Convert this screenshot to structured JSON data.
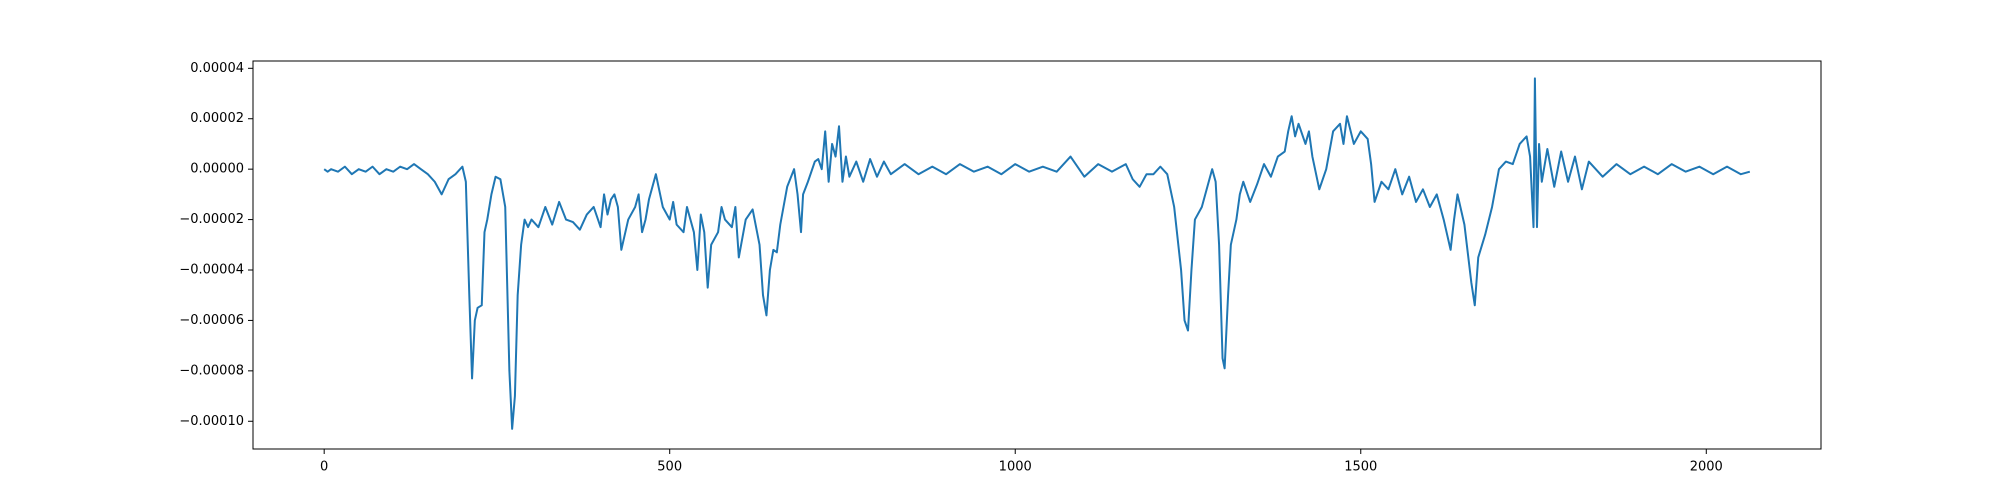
{
  "chart_data": {
    "type": "line",
    "x": [
      0,
      5,
      10,
      20,
      30,
      40,
      50,
      60,
      70,
      80,
      90,
      100,
      110,
      120,
      130,
      140,
      150,
      160,
      170,
      180,
      190,
      200,
      205,
      210,
      214,
      218,
      222,
      228,
      232,
      236,
      242,
      248,
      255,
      262,
      268,
      272,
      276,
      280,
      285,
      290,
      295,
      300,
      310,
      320,
      330,
      340,
      350,
      360,
      370,
      380,
      390,
      400,
      405,
      410,
      415,
      420,
      425,
      430,
      440,
      450,
      455,
      460,
      465,
      470,
      480,
      490,
      500,
      505,
      510,
      520,
      525,
      530,
      535,
      540,
      545,
      550,
      555,
      560,
      570,
      575,
      580,
      590,
      595,
      600,
      610,
      620,
      630,
      635,
      640,
      645,
      650,
      655,
      660,
      670,
      680,
      685,
      690,
      693,
      700,
      710,
      715,
      720,
      725,
      730,
      735,
      740,
      745,
      750,
      755,
      760,
      770,
      780,
      790,
      800,
      810,
      820,
      840,
      860,
      880,
      900,
      920,
      940,
      960,
      980,
      1000,
      1020,
      1040,
      1060,
      1080,
      1100,
      1120,
      1140,
      1160,
      1170,
      1180,
      1190,
      1200,
      1210,
      1220,
      1230,
      1240,
      1245,
      1250,
      1255,
      1260,
      1270,
      1280,
      1285,
      1290,
      1295,
      1300,
      1303,
      1308,
      1312,
      1320,
      1325,
      1330,
      1340,
      1350,
      1360,
      1370,
      1380,
      1390,
      1395,
      1400,
      1405,
      1410,
      1420,
      1425,
      1430,
      1440,
      1450,
      1460,
      1470,
      1475,
      1480,
      1490,
      1500,
      1510,
      1515,
      1520,
      1530,
      1540,
      1550,
      1560,
      1570,
      1580,
      1590,
      1600,
      1610,
      1620,
      1630,
      1635,
      1640,
      1650,
      1660,
      1665,
      1670,
      1680,
      1690,
      1700,
      1710,
      1720,
      1730,
      1740,
      1745,
      1750,
      1752,
      1755,
      1758,
      1762,
      1770,
      1780,
      1790,
      1800,
      1810,
      1820,
      1830,
      1850,
      1870,
      1890,
      1910,
      1930,
      1950,
      1970,
      1990,
      2010,
      2030,
      2050,
      2063
    ],
    "series": [
      {
        "color": "#1f77b4",
        "values": [
          0,
          -1e-06,
          0,
          -1e-06,
          1e-06,
          -2e-06,
          0,
          -1e-06,
          1e-06,
          -2e-06,
          0,
          -1e-06,
          1e-06,
          0,
          2e-06,
          0,
          -2e-06,
          -5e-06,
          -1e-05,
          -4e-06,
          -2e-06,
          1e-06,
          -5e-06,
          -5e-05,
          -8.3e-05,
          -6e-05,
          -5.5e-05,
          -5.4e-05,
          -2.5e-05,
          -2e-05,
          -1e-05,
          -3e-06,
          -4e-06,
          -1.5e-05,
          -8e-05,
          -0.000103,
          -9e-05,
          -5e-05,
          -3e-05,
          -2e-05,
          -2.3e-05,
          -2e-05,
          -2.3e-05,
          -1.5e-05,
          -2.2e-05,
          -1.3e-05,
          -2e-05,
          -2.1e-05,
          -2.4e-05,
          -1.8e-05,
          -1.5e-05,
          -2.3e-05,
          -1e-05,
          -1.8e-05,
          -1.2e-05,
          -1e-05,
          -1.5e-05,
          -3.2e-05,
          -2e-05,
          -1.5e-05,
          -1e-05,
          -2.5e-05,
          -2e-05,
          -1.2e-05,
          -2e-06,
          -1.5e-05,
          -2e-05,
          -1.3e-05,
          -2.2e-05,
          -2.5e-05,
          -1.5e-05,
          -2e-05,
          -2.5e-05,
          -4e-05,
          -1.8e-05,
          -2.5e-05,
          -4.7e-05,
          -3e-05,
          -2.5e-05,
          -1.5e-05,
          -2e-05,
          -2.3e-05,
          -1.5e-05,
          -3.5e-05,
          -2e-05,
          -1.6e-05,
          -3e-05,
          -5e-05,
          -5.8e-05,
          -4e-05,
          -3.2e-05,
          -3.3e-05,
          -2.2e-05,
          -7e-06,
          0,
          -1e-05,
          -2.5e-05,
          -1e-05,
          -5e-06,
          3e-06,
          4e-06,
          0,
          1.5e-05,
          -5e-06,
          1e-05,
          5e-06,
          1.7e-05,
          -5e-06,
          5e-06,
          -3e-06,
          3e-06,
          -5e-06,
          4e-06,
          -3e-06,
          3e-06,
          -2e-06,
          2e-06,
          -2e-06,
          1e-06,
          -2e-06,
          2e-06,
          -1e-06,
          1e-06,
          -2e-06,
          2e-06,
          -1e-06,
          1e-06,
          -1e-06,
          5e-06,
          -3e-06,
          2e-06,
          -1e-06,
          2e-06,
          -4e-06,
          -7e-06,
          -2e-06,
          -2e-06,
          1e-06,
          -2e-06,
          -1.5e-05,
          -4e-05,
          -6e-05,
          -6.4e-05,
          -4e-05,
          -2e-05,
          -1.5e-05,
          -5e-06,
          0,
          -5e-06,
          -3e-05,
          -7.5e-05,
          -7.9e-05,
          -5e-05,
          -3e-05,
          -2e-05,
          -1e-05,
          -5e-06,
          -1.3e-05,
          -6e-06,
          2e-06,
          -3e-06,
          5e-06,
          7e-06,
          1.5e-05,
          2.1e-05,
          1.3e-05,
          1.8e-05,
          1e-05,
          1.5e-05,
          5e-06,
          -8e-06,
          0,
          1.5e-05,
          1.8e-05,
          1e-05,
          2.1e-05,
          1e-05,
          1.5e-05,
          1.2e-05,
          2e-06,
          -1.3e-05,
          -5e-06,
          -8e-06,
          0,
          -1e-05,
          -3e-06,
          -1.3e-05,
          -8e-06,
          -1.5e-05,
          -1e-05,
          -2e-05,
          -3.2e-05,
          -2e-05,
          -1e-05,
          -2.2e-05,
          -4.5e-05,
          -5.4e-05,
          -3.5e-05,
          -2.6e-05,
          -1.5e-05,
          0,
          3e-06,
          2e-06,
          1e-05,
          1.3e-05,
          5e-06,
          -2.3e-05,
          3.6e-05,
          -2.3e-05,
          1e-05,
          -5e-06,
          8e-06,
          -7e-06,
          7e-06,
          -5e-06,
          5e-06,
          -8e-06,
          3e-06,
          -3e-06,
          2e-06,
          -2e-06,
          1e-06,
          -2e-06,
          2e-06,
          -1e-06,
          1e-06,
          -2e-06,
          1e-06,
          -2e-06,
          -1e-06
        ]
      }
    ],
    "xlim": [
      -103,
      2166
    ],
    "xticks": [
      0,
      500,
      1000,
      1500,
      2000
    ],
    "ylim": [
      -0.000111,
      4.29e-05
    ],
    "yticks": [
      {
        "value": 4e-05,
        "label": "0.00004"
      },
      {
        "value": 2e-05,
        "label": "0.00002"
      },
      {
        "value": 0,
        "label": "0.00000"
      },
      {
        "value": -2e-05,
        "label": "−0.00002"
      },
      {
        "value": -4e-05,
        "label": "−0.00004"
      },
      {
        "value": -6e-05,
        "label": "−0.00006"
      },
      {
        "value": -8e-05,
        "label": "−0.00008"
      },
      {
        "value": -0.0001,
        "label": "−0.00010"
      }
    ]
  }
}
